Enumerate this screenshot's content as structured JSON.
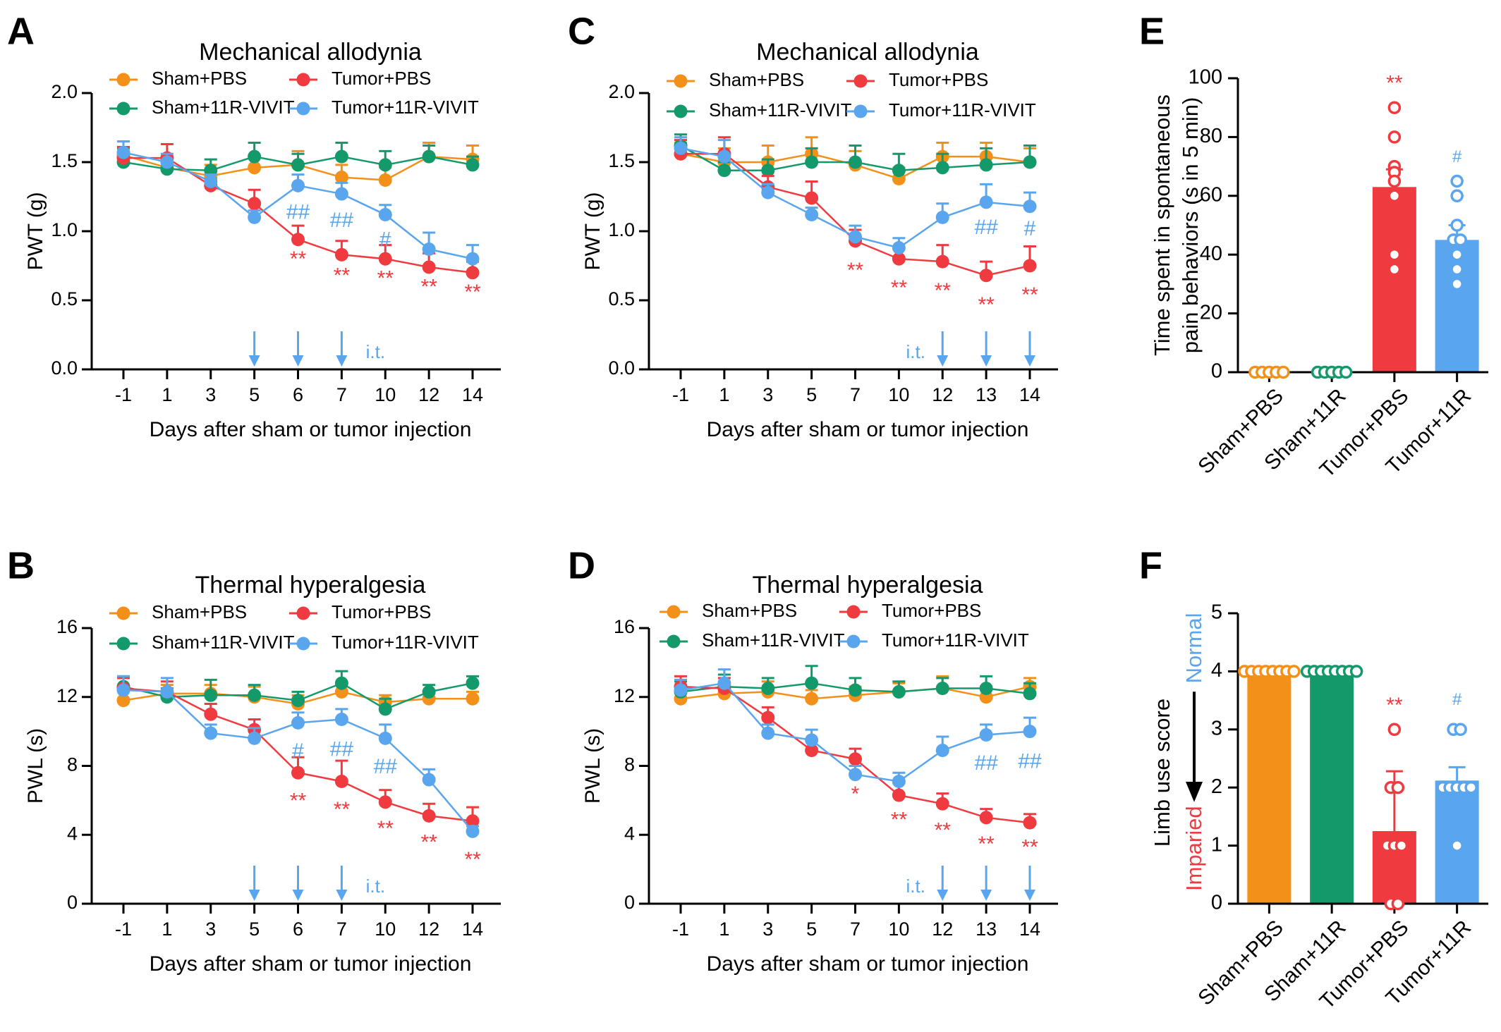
{
  "colors": {
    "sham_pbs": "#f39019",
    "sham_11r": "#14996a",
    "tumor_pbs": "#ef3b40",
    "tumor_11r": "#59a5ee",
    "axis": "#000000"
  },
  "chart_data": [
    {
      "panel": "A",
      "type": "line",
      "title": "Mechanical allodynia",
      "xlabel": "Days after sham or tumor injection",
      "ylabel": "PWT (g)",
      "x": [
        "-1",
        "1",
        "3",
        "5",
        "6",
        "7",
        "10",
        "12",
        "14"
      ],
      "ylim": [
        0,
        2.0
      ],
      "yticks": [
        "0.0",
        "0.5",
        "1.0",
        "1.5",
        "2.0"
      ],
      "series": [
        {
          "name": "Sham+PBS",
          "key": "sham_pbs",
          "values": [
            1.55,
            1.46,
            1.4,
            1.46,
            1.48,
            1.39,
            1.37,
            1.54,
            1.52
          ],
          "errors": [
            0.1,
            0.08,
            0.08,
            0.09,
            0.1,
            0.09,
            0.09,
            0.1,
            0.1
          ]
        },
        {
          "name": "Sham+11R-VIVIT",
          "key": "sham_11r",
          "values": [
            1.5,
            1.45,
            1.44,
            1.54,
            1.48,
            1.54,
            1.48,
            1.54,
            1.48
          ],
          "errors": [
            0.1,
            0.06,
            0.08,
            0.1,
            0.08,
            0.1,
            0.1,
            0.08,
            0.06
          ]
        },
        {
          "name": "Tumor+PBS",
          "key": "tumor_pbs",
          "values": [
            1.53,
            1.53,
            1.33,
            1.2,
            0.94,
            0.83,
            0.8,
            0.74,
            0.7
          ],
          "errors": [
            0.08,
            0.1,
            0.05,
            0.1,
            0.1,
            0.1,
            0.1,
            0.1,
            0.08
          ]
        },
        {
          "name": "Tumor+11R-VIVIT",
          "key": "tumor_11r",
          "values": [
            1.57,
            1.5,
            1.36,
            1.1,
            1.33,
            1.27,
            1.12,
            0.87,
            0.8
          ],
          "errors": [
            0.08,
            0.06,
            0.05,
            0.05,
            0.08,
            0.08,
            0.07,
            0.12,
            0.1
          ]
        }
      ],
      "annotations": [
        {
          "text": "**",
          "xi": 4,
          "key": "tumor_pbs",
          "y": 0.79
        },
        {
          "text": "**",
          "xi": 5,
          "key": "tumor_pbs",
          "y": 0.67
        },
        {
          "text": "**",
          "xi": 6,
          "key": "tumor_pbs",
          "y": 0.65
        },
        {
          "text": "**",
          "xi": 7,
          "key": "tumor_pbs",
          "y": 0.59
        },
        {
          "text": "**",
          "xi": 8,
          "key": "tumor_pbs",
          "y": 0.55
        },
        {
          "text": "##",
          "xi": 4,
          "key": "tumor_11r",
          "y": 1.13
        },
        {
          "text": "##",
          "xi": 5,
          "key": "tumor_11r",
          "y": 1.07
        },
        {
          "text": "#",
          "xi": 6,
          "key": "tumor_11r",
          "y": 0.93
        }
      ],
      "injection_days": [
        3,
        4,
        5
      ],
      "injection_label": "i.t.",
      "injection_label_side": "right"
    },
    {
      "panel": "B",
      "type": "line",
      "title": "Thermal hyperalgesia",
      "xlabel": "Days after sham or tumor injection",
      "ylabel": "PWL (s)",
      "x": [
        "-1",
        "1",
        "3",
        "5",
        "6",
        "7",
        "10",
        "12",
        "14"
      ],
      "ylim": [
        0,
        16
      ],
      "yticks": [
        "0",
        "4",
        "8",
        "12",
        "16"
      ],
      "series": [
        {
          "name": "Sham+PBS",
          "key": "sham_pbs",
          "values": [
            11.8,
            12.2,
            12.2,
            12.0,
            11.6,
            12.3,
            11.7,
            11.9,
            11.9
          ],
          "errors": [
            0.6,
            0.5,
            0.5,
            0.6,
            0.5,
            0.5,
            0.4,
            0.4,
            0.4
          ]
        },
        {
          "name": "Sham+11R-VIVIT",
          "key": "sham_11r",
          "values": [
            12.6,
            12.0,
            12.1,
            12.1,
            11.8,
            12.8,
            11.3,
            12.3,
            12.8
          ],
          "errors": [
            0.6,
            0.5,
            0.9,
            0.6,
            0.5,
            0.7,
            0.6,
            0.4,
            0.4
          ]
        },
        {
          "name": "Tumor+PBS",
          "key": "tumor_pbs",
          "values": [
            12.5,
            12.3,
            11.0,
            10.1,
            7.6,
            7.1,
            5.9,
            5.1,
            4.8
          ],
          "errors": [
            0.6,
            0.6,
            0.6,
            0.6,
            0.9,
            1.2,
            0.7,
            0.7,
            0.8
          ]
        },
        {
          "name": "Tumor+11R-VIVIT",
          "key": "tumor_11r",
          "values": [
            12.4,
            12.3,
            9.9,
            9.6,
            10.5,
            10.7,
            9.6,
            7.2,
            4.2
          ],
          "errors": [
            0.8,
            0.8,
            0.5,
            0.6,
            0.6,
            0.6,
            0.8,
            0.6,
            0.3
          ]
        }
      ],
      "annotations": [
        {
          "text": "**",
          "xi": 4,
          "key": "tumor_pbs",
          "y": 5.9
        },
        {
          "text": "**",
          "xi": 5,
          "key": "tumor_pbs",
          "y": 5.4
        },
        {
          "text": "**",
          "xi": 6,
          "key": "tumor_pbs",
          "y": 4.3
        },
        {
          "text": "**",
          "xi": 7,
          "key": "tumor_pbs",
          "y": 3.5
        },
        {
          "text": "**",
          "xi": 8,
          "key": "tumor_pbs",
          "y": 2.5
        },
        {
          "text": "#",
          "xi": 4,
          "key": "tumor_11r",
          "y": 8.8
        },
        {
          "text": "##",
          "xi": 5,
          "key": "tumor_11r",
          "y": 8.9
        },
        {
          "text": "##",
          "xi": 6,
          "key": "tumor_11r",
          "y": 7.9
        }
      ],
      "injection_days": [
        3,
        4,
        5
      ],
      "injection_label": "i.t.",
      "injection_label_side": "right"
    },
    {
      "panel": "C",
      "type": "line",
      "title": "Mechanical allodynia",
      "xlabel": "Days after sham or tumor injection",
      "ylabel": "PWT (g)",
      "x": [
        "-1",
        "1",
        "3",
        "5",
        "7",
        "10",
        "12",
        "13",
        "14"
      ],
      "ylim": [
        0,
        2.0
      ],
      "yticks": [
        "0.0",
        "0.5",
        "1.0",
        "1.5",
        "2.0"
      ],
      "series": [
        {
          "name": "Sham+PBS",
          "key": "sham_pbs",
          "values": [
            1.56,
            1.5,
            1.5,
            1.56,
            1.48,
            1.38,
            1.54,
            1.54,
            1.5
          ],
          "errors": [
            0.08,
            0.1,
            0.12,
            0.12,
            0.1,
            0.08,
            0.1,
            0.1,
            0.1
          ]
        },
        {
          "name": "Sham+11R-VIVIT",
          "key": "sham_11r",
          "values": [
            1.62,
            1.44,
            1.44,
            1.5,
            1.5,
            1.44,
            1.46,
            1.48,
            1.5
          ],
          "errors": [
            0.08,
            0.06,
            0.08,
            0.1,
            0.12,
            0.12,
            0.1,
            0.12,
            0.12
          ]
        },
        {
          "name": "Tumor+PBS",
          "key": "tumor_pbs",
          "values": [
            1.56,
            1.56,
            1.32,
            1.24,
            0.93,
            0.8,
            0.78,
            0.68,
            0.75
          ],
          "errors": [
            0.1,
            0.12,
            0.08,
            0.12,
            0.08,
            0.08,
            0.12,
            0.1,
            0.14
          ]
        },
        {
          "name": "Tumor+11R-VIVIT",
          "key": "tumor_11r",
          "values": [
            1.6,
            1.54,
            1.28,
            1.12,
            0.96,
            0.88,
            1.1,
            1.21,
            1.18
          ],
          "errors": [
            0.08,
            0.12,
            0.06,
            0.05,
            0.08,
            0.07,
            0.1,
            0.13,
            0.1
          ]
        }
      ],
      "annotations": [
        {
          "text": "**",
          "xi": 4,
          "key": "tumor_pbs",
          "y": 0.71
        },
        {
          "text": "**",
          "xi": 5,
          "key": "tumor_pbs",
          "y": 0.58
        },
        {
          "text": "**",
          "xi": 6,
          "key": "tumor_pbs",
          "y": 0.56
        },
        {
          "text": "**",
          "xi": 7,
          "key": "tumor_pbs",
          "y": 0.46
        },
        {
          "text": "**",
          "xi": 8,
          "key": "tumor_pbs",
          "y": 0.53
        },
        {
          "text": "##",
          "xi": 7,
          "key": "tumor_11r",
          "y": 1.02
        },
        {
          "text": "#",
          "xi": 8,
          "key": "tumor_11r",
          "y": 1.01
        }
      ],
      "injection_days": [
        6,
        7,
        8
      ],
      "injection_label": "i.t.",
      "injection_label_side": "left"
    },
    {
      "panel": "D",
      "type": "line",
      "title": "Thermal hyperalgesia",
      "xlabel": "Days after sham or tumor injection",
      "ylabel": "PWL (s)",
      "x": [
        "-1",
        "1",
        "3",
        "5",
        "7",
        "10",
        "12",
        "13",
        "14"
      ],
      "ylim": [
        0,
        16
      ],
      "yticks": [
        "0",
        "4",
        "8",
        "12",
        "16"
      ],
      "series": [
        {
          "name": "Sham+PBS",
          "key": "sham_pbs",
          "values": [
            11.9,
            12.2,
            12.3,
            11.9,
            12.1,
            12.3,
            12.5,
            12.0,
            12.6
          ],
          "errors": [
            0.5,
            0.6,
            0.6,
            0.5,
            0.5,
            0.5,
            0.7,
            0.6,
            0.5
          ]
        },
        {
          "name": "Sham+11R-VIVIT",
          "key": "sham_11r",
          "values": [
            12.3,
            12.6,
            12.5,
            12.8,
            12.4,
            12.3,
            12.5,
            12.5,
            12.2
          ],
          "errors": [
            0.6,
            0.7,
            0.6,
            1.0,
            0.7,
            0.6,
            0.6,
            0.7,
            0.6
          ]
        },
        {
          "name": "Tumor+PBS",
          "key": "tumor_pbs",
          "values": [
            12.6,
            12.5,
            10.8,
            8.9,
            8.4,
            6.3,
            5.8,
            5.0,
            4.7
          ],
          "errors": [
            0.6,
            0.6,
            0.6,
            0.6,
            0.6,
            0.7,
            0.6,
            0.5,
            0.5
          ]
        },
        {
          "name": "Tumor+11R-VIVIT",
          "key": "tumor_11r",
          "values": [
            12.4,
            12.8,
            9.9,
            9.5,
            7.5,
            7.1,
            8.9,
            9.8,
            10.0
          ],
          "errors": [
            0.6,
            0.8,
            0.5,
            0.6,
            0.5,
            0.5,
            0.8,
            0.6,
            0.8
          ]
        }
      ],
      "annotations": [
        {
          "text": "*",
          "xi": 4,
          "key": "tumor_pbs",
          "y": 6.3
        },
        {
          "text": "**",
          "xi": 5,
          "key": "tumor_pbs",
          "y": 4.8
        },
        {
          "text": "**",
          "xi": 6,
          "key": "tumor_pbs",
          "y": 4.2
        },
        {
          "text": "**",
          "xi": 7,
          "key": "tumor_pbs",
          "y": 3.4
        },
        {
          "text": "**",
          "xi": 8,
          "key": "tumor_pbs",
          "y": 3.2
        },
        {
          "text": "##",
          "xi": 7,
          "key": "tumor_11r",
          "y": 8.1
        },
        {
          "text": "##",
          "xi": 8,
          "key": "tumor_11r",
          "y": 8.2
        }
      ],
      "injection_days": [
        6,
        7,
        8
      ],
      "injection_label": "i.t.",
      "injection_label_side": "left"
    },
    {
      "panel": "E",
      "type": "bar",
      "ylabel_lines": [
        "Time spent in spontaneous",
        "pain behaviors (s in 5 min)"
      ],
      "categories": [
        "Sham+PBS",
        "Sham+11R",
        "Tumor+PBS",
        "Tumor+11R"
      ],
      "keys": [
        "sham_pbs",
        "sham_11r",
        "tumor_pbs",
        "tumor_11r"
      ],
      "ylim": [
        0,
        100
      ],
      "yticks": [
        "0",
        "20",
        "40",
        "60",
        "80",
        "100"
      ],
      "values": [
        0,
        0,
        63,
        45
      ],
      "errors": [
        0,
        0,
        6,
        5
      ],
      "points": [
        [
          0,
          0,
          0,
          0,
          0
        ],
        [
          0,
          0,
          0,
          0,
          0
        ],
        [
          90,
          80,
          70,
          68,
          65,
          60,
          40,
          35
        ],
        [
          65,
          60,
          50,
          45,
          45,
          40,
          35,
          30
        ]
      ],
      "annotations": [
        {
          "text": "**",
          "index": 2,
          "y": 98
        },
        {
          "text": "#",
          "index": 3,
          "y": 73
        }
      ]
    },
    {
      "panel": "F",
      "type": "bar",
      "ylabel": "Limb use score",
      "scale_top_label": "Normal",
      "scale_bottom_label": "Imparied",
      "categories": [
        "Sham+PBS",
        "Sham+11R",
        "Tumor+PBS",
        "Tumor+11R"
      ],
      "keys": [
        "sham_pbs",
        "sham_11r",
        "tumor_pbs",
        "tumor_11r"
      ],
      "ylim": [
        0,
        5
      ],
      "yticks": [
        "0",
        "1",
        "2",
        "3",
        "4",
        "5"
      ],
      "values": [
        4,
        4,
        1.25,
        2.12
      ],
      "errors": [
        0,
        0,
        1.03,
        0.23
      ],
      "points": [
        [
          4,
          4,
          4,
          4,
          4,
          4,
          4,
          4
        ],
        [
          4,
          4,
          4,
          4,
          4,
          4,
          4,
          4
        ],
        [
          3,
          2,
          2,
          1,
          1,
          1,
          0,
          0
        ],
        [
          3,
          3,
          2,
          2,
          2,
          2,
          2,
          1
        ]
      ],
      "annotations": [
        {
          "text": "**",
          "index": 2,
          "y": 3.4
        },
        {
          "text": "#",
          "index": 3,
          "y": 3.5
        }
      ]
    }
  ],
  "panel_labels": [
    "A",
    "B",
    "C",
    "D",
    "E",
    "F"
  ]
}
